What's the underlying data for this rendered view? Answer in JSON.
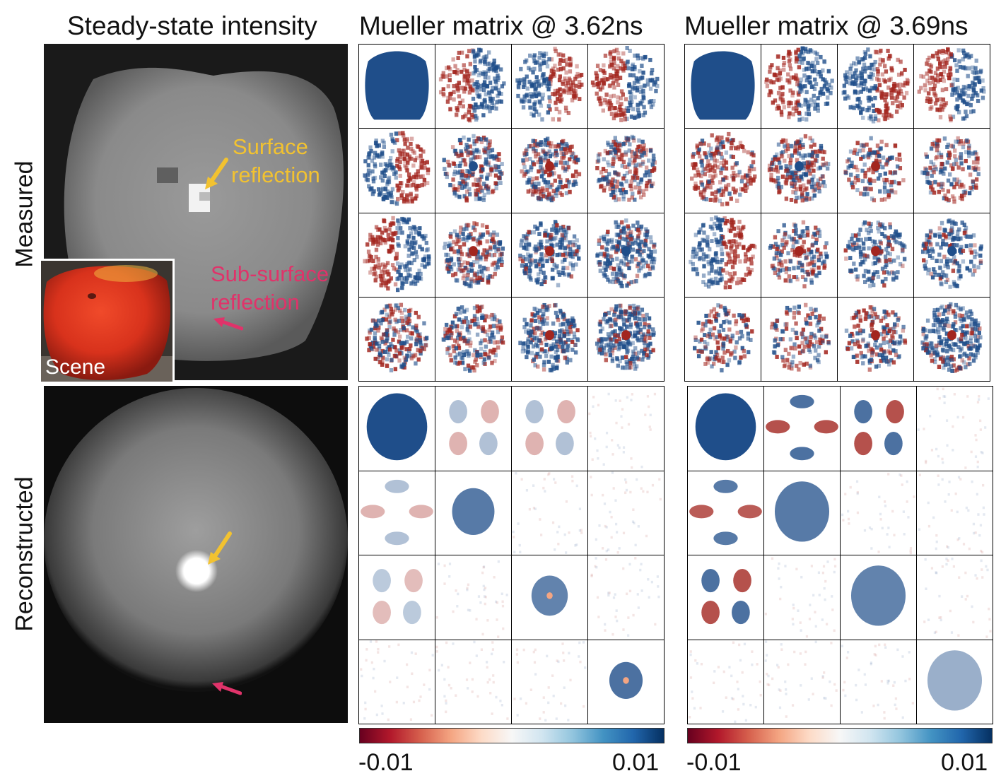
{
  "columns": {
    "steady": "Steady-state intensity",
    "mueller_a": "Mueller matrix @ 3.62ns",
    "mueller_b": "Mueller matrix @ 3.69ns"
  },
  "rows": {
    "measured": "Measured",
    "reconstructed": "Reconstructed"
  },
  "annotations": {
    "surface_line1": "Surface",
    "surface_line2": "reflection",
    "subsurface_line1": "Sub-surface",
    "subsurface_line2": "reflection",
    "scene": "Scene"
  },
  "colorbar": {
    "min_label": "-0.01",
    "max_label": "0.01",
    "colors": [
      "#67001f",
      "#b2182b",
      "#d6604d",
      "#f4a582",
      "#fddbc7",
      "#f7f7f7",
      "#d1e5f0",
      "#92c5de",
      "#4393c3",
      "#2166ac",
      "#053061"
    ]
  },
  "colors": {
    "surface_arrow": "#f2c230",
    "subsurface_arrow": "#e0336a",
    "positive": "#1f4e8a",
    "negative": "#a3261f"
  }
}
